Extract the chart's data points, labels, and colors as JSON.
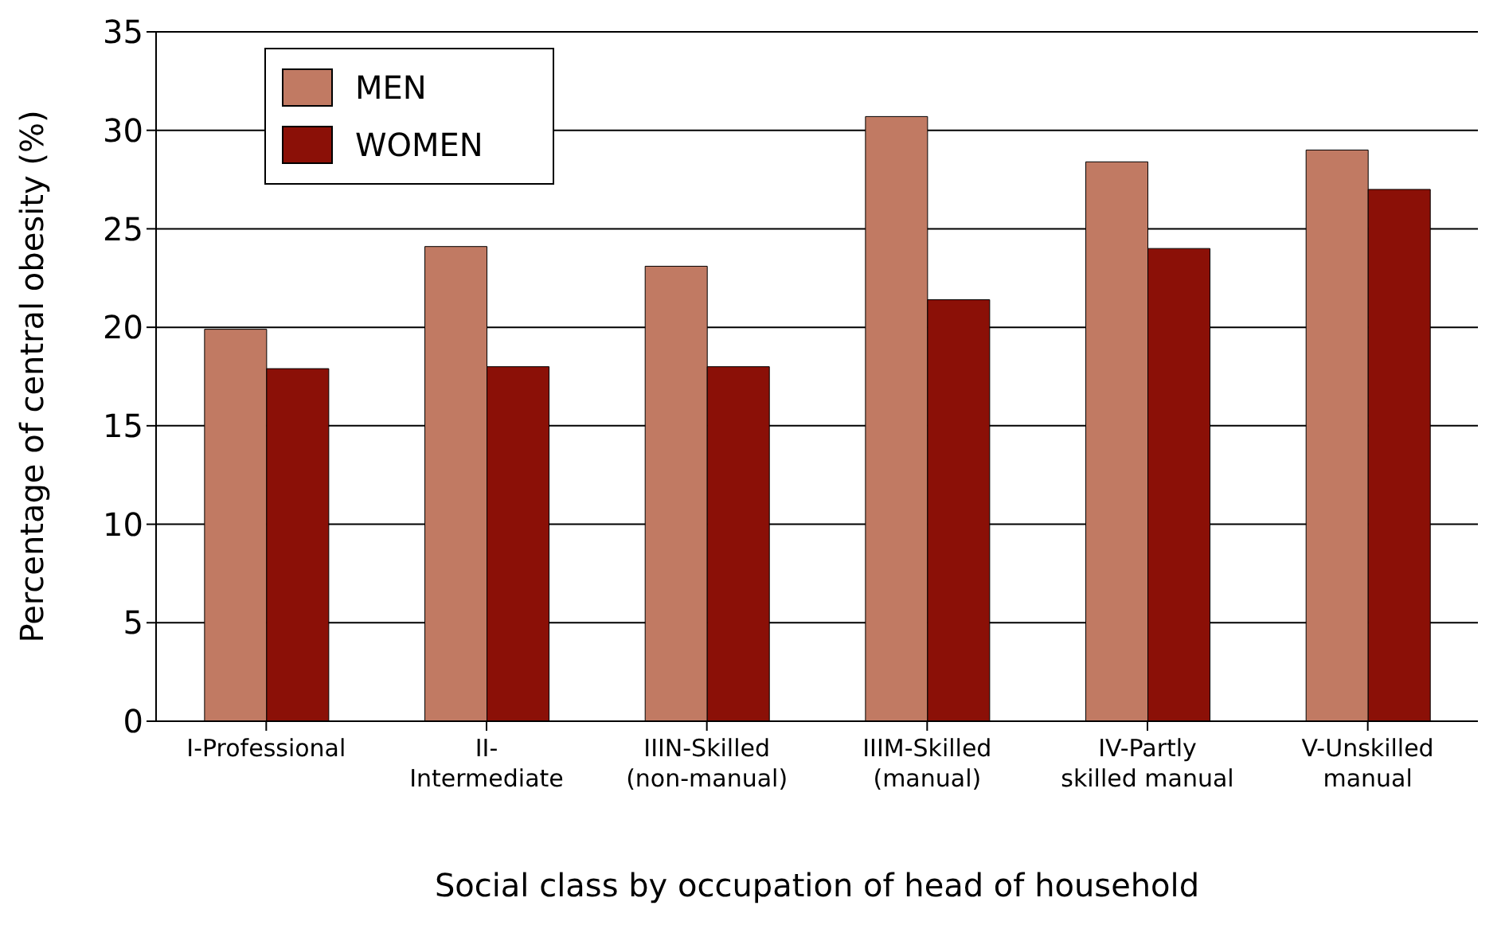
{
  "chart_data": {
    "type": "bar",
    "xlabel": "Social class by occupation of head of household",
    "ylabel": "Percentage of central obesity (%)",
    "categories": [
      "I-Professional",
      "II- Intermediate",
      "IIIN-Skilled (non-manual)",
      "IIIM-Skilled (manual)",
      "IV-Partly skilled manual",
      "V-Unskilled manual"
    ],
    "series": [
      {
        "name": "MEN",
        "color": "#c17a63",
        "values": [
          19.9,
          24.1,
          23.1,
          30.7,
          28.4,
          29.0
        ]
      },
      {
        "name": "WOMEN",
        "color": "#8b1007",
        "values": [
          17.9,
          18.0,
          18.0,
          21.4,
          24.0,
          27.0
        ]
      }
    ],
    "ylim": [
      0,
      35
    ],
    "yticks": [
      0,
      5,
      10,
      15,
      20,
      25,
      30,
      35
    ],
    "grid": "y",
    "legend": "top left"
  }
}
